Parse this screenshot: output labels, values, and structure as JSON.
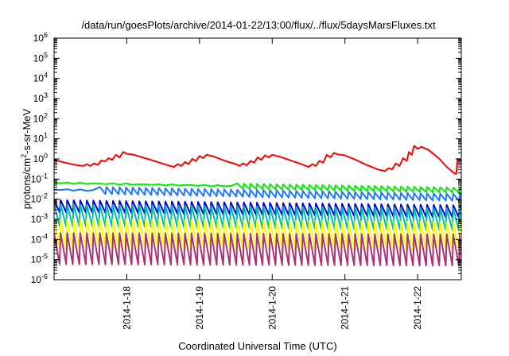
{
  "chart_data": {
    "type": "line",
    "title": "/data/run/goesPlots/archive/2014-01-22/13:00/flux/../flux/5daysMarsFluxes.txt",
    "xlabel": "Coordinated Universal Time (UTC)",
    "ylabel_parts": [
      "protons/cm",
      "2",
      "-s-sr-MeV"
    ],
    "yscale": "log",
    "ylim": [
      1e-06,
      1000000.0
    ],
    "xlim": [
      0,
      5.6
    ],
    "x_unit": "days since 2014-01-17 00:00 UTC",
    "y_ticks": [
      {
        "base": "10",
        "exp": "-6",
        "value": 1e-06
      },
      {
        "base": "10",
        "exp": "-5",
        "value": 1e-05
      },
      {
        "base": "10",
        "exp": "-4",
        "value": 0.0001
      },
      {
        "base": "10",
        "exp": "-3",
        "value": 0.001
      },
      {
        "base": "10",
        "exp": "-2",
        "value": 0.01
      },
      {
        "base": "10",
        "exp": "-1",
        "value": 0.1
      },
      {
        "base": "10",
        "exp": "0",
        "value": 1
      },
      {
        "base": "10",
        "exp": "1",
        "value": 10
      },
      {
        "base": "10",
        "exp": "2",
        "value": 100
      },
      {
        "base": "10",
        "exp": "3",
        "value": 1000
      },
      {
        "base": "10",
        "exp": "4",
        "value": 10000
      },
      {
        "base": "10",
        "exp": "5",
        "value": 100000
      },
      {
        "base": "10",
        "exp": "6",
        "value": 1000000
      }
    ],
    "x_ticks": [
      {
        "label": "2014-1-18",
        "value": 1
      },
      {
        "label": "2014-1-19",
        "value": 2
      },
      {
        "label": "2014-1-20",
        "value": 3
      },
      {
        "label": "2014-1-21",
        "value": 4
      },
      {
        "label": "2014-1-22",
        "value": 5
      }
    ],
    "grid": false,
    "series": [
      {
        "color": "#ff0000",
        "values": [
          [
            0,
            0.9
          ],
          [
            0.15,
            0.65
          ],
          [
            0.3,
            0.5
          ],
          [
            0.4,
            0.45
          ],
          [
            0.45,
            0.55
          ],
          [
            0.5,
            0.45
          ],
          [
            0.55,
            0.6
          ],
          [
            0.6,
            0.5
          ],
          [
            0.65,
            0.85
          ],
          [
            0.7,
            0.75
          ],
          [
            0.75,
            1.1
          ],
          [
            0.8,
            0.9
          ],
          [
            0.85,
            1.6
          ],
          [
            0.9,
            1.2
          ],
          [
            0.95,
            2.2
          ],
          [
            1.0,
            1.8
          ],
          [
            1.1,
            1.6
          ],
          [
            1.25,
            1.1
          ],
          [
            1.4,
            0.75
          ],
          [
            1.55,
            0.5
          ],
          [
            1.65,
            0.4
          ],
          [
            1.7,
            0.55
          ],
          [
            1.75,
            0.45
          ],
          [
            1.8,
            0.7
          ],
          [
            1.85,
            0.55
          ],
          [
            1.9,
            1.0
          ],
          [
            1.95,
            0.8
          ],
          [
            2.0,
            1.4
          ],
          [
            2.05,
            1.1
          ],
          [
            2.1,
            1.6
          ],
          [
            2.2,
            1.3
          ],
          [
            2.35,
            0.8
          ],
          [
            2.5,
            0.55
          ],
          [
            2.55,
            0.45
          ],
          [
            2.6,
            0.6
          ],
          [
            2.65,
            0.48
          ],
          [
            2.7,
            0.8
          ],
          [
            2.75,
            0.65
          ],
          [
            2.8,
            1.2
          ],
          [
            2.85,
            0.9
          ],
          [
            2.9,
            1.5
          ],
          [
            2.95,
            1.2
          ],
          [
            3.0,
            1.6
          ],
          [
            3.1,
            1.3
          ],
          [
            3.25,
            0.85
          ],
          [
            3.4,
            0.55
          ],
          [
            3.5,
            0.4
          ],
          [
            3.55,
            0.55
          ],
          [
            3.6,
            0.45
          ],
          [
            3.65,
            0.8
          ],
          [
            3.7,
            0.65
          ],
          [
            3.75,
            1.6
          ],
          [
            3.8,
            1.2
          ],
          [
            3.85,
            2.0
          ],
          [
            3.9,
            1.7
          ],
          [
            4.0,
            1.5
          ],
          [
            4.15,
            0.9
          ],
          [
            4.3,
            0.5
          ],
          [
            4.45,
            0.3
          ],
          [
            4.55,
            0.25
          ],
          [
            4.6,
            0.35
          ],
          [
            4.65,
            0.3
          ],
          [
            4.7,
            0.6
          ],
          [
            4.75,
            0.45
          ],
          [
            4.8,
            1.1
          ],
          [
            4.85,
            0.8
          ],
          [
            4.88,
            2.2
          ],
          [
            4.92,
            1.6
          ],
          [
            4.95,
            4.5
          ],
          [
            5.0,
            3.2
          ],
          [
            5.05,
            4.0
          ],
          [
            5.15,
            2.8
          ],
          [
            5.3,
            1.0
          ],
          [
            5.4,
            0.4
          ],
          [
            5.5,
            0.2
          ],
          [
            5.53,
            0.18
          ],
          [
            5.55,
            1.0
          ],
          [
            5.58,
            0.95
          ],
          [
            5.6,
            0.85
          ]
        ]
      },
      {
        "color": "#00ee00",
        "base": 0.065,
        "end": 0.028,
        "pulse_from": 2.5,
        "amp": 1.35
      },
      {
        "color": "#1e78ff",
        "base": 0.03,
        "end": 0.012,
        "pulse_from": 0.6,
        "amp": 1.5
      },
      {
        "color": "#0000dd",
        "base": 0.0045,
        "end": 0.0025,
        "pulse_from": 0,
        "amp": 2.0
      },
      {
        "color": "#00bbaa",
        "base": 0.0016,
        "end": 0.001,
        "pulse_from": 0,
        "amp": 3.5
      },
      {
        "color": "#ffff00",
        "base": 0.0002,
        "end": 0.00015,
        "pulse_from": 0,
        "amp": 5.0
      },
      {
        "color": "#aa3377",
        "base": 3.5e-05,
        "end": 3e-05,
        "pulse_from": 0,
        "amp": 6.0
      }
    ]
  }
}
